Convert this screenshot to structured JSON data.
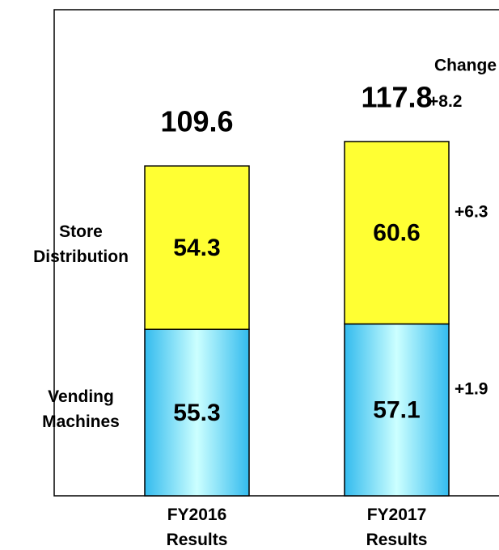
{
  "chart_data": {
    "type": "stacked_bar",
    "categories": [
      "FY2016 Results",
      "FY2017 Results"
    ],
    "series": [
      {
        "name": "Vending Machines",
        "color": "#33c0f0",
        "values": [
          55.3,
          57.1
        ]
      },
      {
        "name": "Store Distribution",
        "color": "#ffff33",
        "values": [
          54.3,
          60.6
        ]
      }
    ],
    "totals": [
      109.6,
      117.8
    ],
    "change_header": "Change",
    "changes": {
      "total": "+8.2",
      "series": [
        "+1.9",
        "+6.3"
      ]
    },
    "ylim": [
      0,
      161.5
    ]
  }
}
